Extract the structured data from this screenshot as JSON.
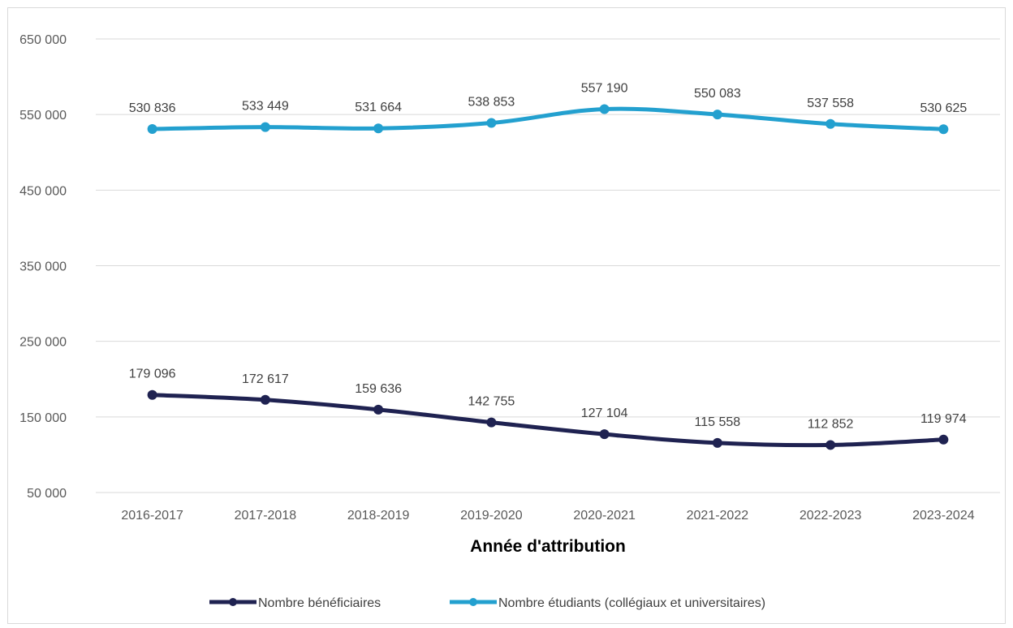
{
  "chart_data": {
    "type": "line",
    "title": "",
    "xlabel": "Année d'attribution",
    "ylabel": "",
    "ylim": [
      50000,
      650000
    ],
    "yticks": [
      50000,
      150000,
      250000,
      350000,
      450000,
      550000,
      650000
    ],
    "ytick_labels": [
      "50 000",
      "150 000",
      "250 000",
      "350 000",
      "450 000",
      "550 000",
      "650 000"
    ],
    "grid": true,
    "legend_position": "bottom",
    "categories": [
      "2016-2017",
      "2017-2018",
      "2018-2019",
      "2019-2020",
      "2020-2021",
      "2021-2022",
      "2022-2023",
      "2023-2024"
    ],
    "series": [
      {
        "name": "Nombre bénéficiaires",
        "color": "#1f2251",
        "values": [
          179096,
          172617,
          159636,
          142755,
          127104,
          115558,
          112852,
          119974
        ],
        "labels": [
          "179 096",
          "172 617",
          "159 636",
          "142 755",
          "127 104",
          "115 558",
          "112 852",
          "119 974"
        ]
      },
      {
        "name": "Nombre étudiants (collégiaux et universitaires)",
        "color": "#23a0cf",
        "values": [
          530836,
          533449,
          531664,
          538853,
          557190,
          550083,
          537558,
          530625
        ],
        "labels": [
          "530 836",
          "533 449",
          "531 664",
          "538 853",
          "557 190",
          "550 083",
          "537 558",
          "530 625"
        ]
      }
    ]
  }
}
